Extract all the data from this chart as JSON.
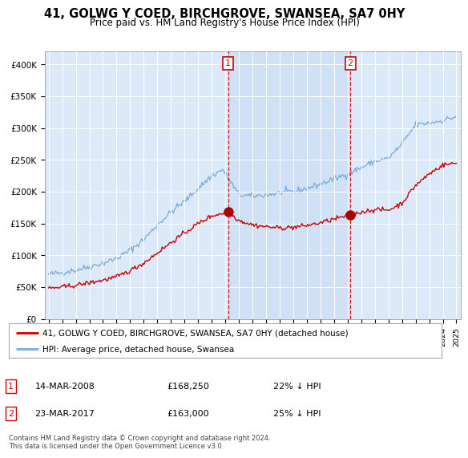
{
  "title": "41, GOLWG Y COED, BIRCHGROVE, SWANSEA, SA7 0HY",
  "subtitle": "Price paid vs. HM Land Registry's House Price Index (HPI)",
  "legend_label_red": "41, GOLWG Y COED, BIRCHGROVE, SWANSEA, SA7 0HY (detached house)",
  "legend_label_blue": "HPI: Average price, detached house, Swansea",
  "transaction1_date": "14-MAR-2008",
  "transaction1_price": "£168,250",
  "transaction1_hpi": "22% ↓ HPI",
  "transaction2_date": "23-MAR-2017",
  "transaction2_price": "£163,000",
  "transaction2_hpi": "25% ↓ HPI",
  "footer": "Contains HM Land Registry data © Crown copyright and database right 2024.\nThis data is licensed under the Open Government Licence v3.0.",
  "background_color": "#dce9f8",
  "shade_color": "#c8ddf5",
  "red_color": "#cc0000",
  "blue_color": "#7aabda",
  "vline_color": "#cc0000",
  "grid_color": "#c0c0c0",
  "ylim_min": 0,
  "ylim_max": 420000,
  "yticks": [
    0,
    50000,
    100000,
    150000,
    200000,
    250000,
    300000,
    350000,
    400000
  ],
  "ytick_labels": [
    "£0",
    "£50K",
    "£100K",
    "£150K",
    "£200K",
    "£250K",
    "£300K",
    "£350K",
    "£400K"
  ],
  "transaction1_year": 2008.2,
  "transaction1_value": 168250,
  "transaction2_year": 2017.2,
  "transaction2_value": 163000,
  "xmin": 1995,
  "xmax": 2025
}
